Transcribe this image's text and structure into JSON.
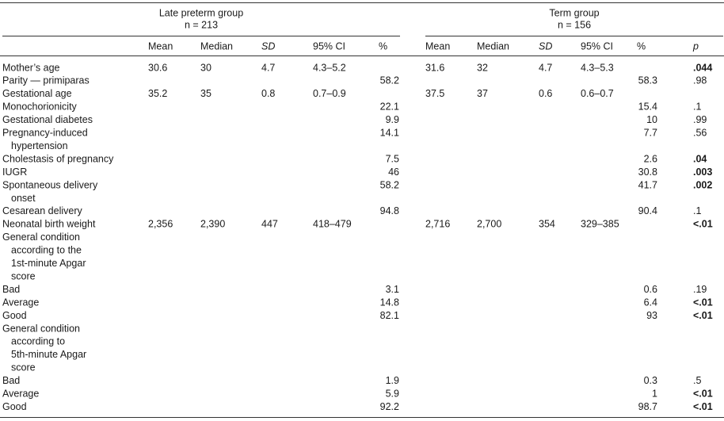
{
  "table": {
    "groups": [
      {
        "title": "Late preterm group",
        "n": "n = 213"
      },
      {
        "title": "Term group",
        "n": "n = 156"
      }
    ],
    "columns": [
      "Mean",
      "Median",
      "SD",
      "95% CI",
      "%"
    ],
    "p_header": "p",
    "rows": [
      {
        "label": [
          "Mother’s age"
        ],
        "late": [
          "30.6",
          "30",
          "4.7",
          "4.3–5.2",
          null
        ],
        "term": [
          "31.6",
          "32",
          "4.7",
          "4.3–5.3",
          null
        ],
        "p": ".044",
        "p_bold": true
      },
      {
        "label": [
          "Parity — primiparas"
        ],
        "late": [
          null,
          null,
          null,
          null,
          "58.2"
        ],
        "term": [
          null,
          null,
          null,
          null,
          "58.3"
        ],
        "p": ".98",
        "p_bold": false
      },
      {
        "label": [
          "Gestational age"
        ],
        "late": [
          "35.2",
          "35",
          "0.8",
          "0.7–0.9",
          null
        ],
        "term": [
          "37.5",
          "37",
          "0.6",
          "0.6–0.7",
          null
        ],
        "p": null,
        "p_bold": false
      },
      {
        "label": [
          "Monochorionicity"
        ],
        "late": [
          null,
          null,
          null,
          null,
          "22.1"
        ],
        "term": [
          null,
          null,
          null,
          null,
          "15.4"
        ],
        "p": ".1",
        "p_bold": false
      },
      {
        "label": [
          "Gestational diabetes"
        ],
        "late": [
          null,
          null,
          null,
          null,
          "9.9"
        ],
        "term": [
          null,
          null,
          null,
          null,
          "10"
        ],
        "p": ".99",
        "p_bold": false
      },
      {
        "label": [
          "Pregnancy-induced",
          "hypertension"
        ],
        "late": [
          null,
          null,
          null,
          null,
          "14.1"
        ],
        "term": [
          null,
          null,
          null,
          null,
          "7.7"
        ],
        "p": ".56",
        "p_bold": false
      },
      {
        "label": [
          "Cholestasis of pregnancy"
        ],
        "late": [
          null,
          null,
          null,
          null,
          "7.5"
        ],
        "term": [
          null,
          null,
          null,
          null,
          "2.6"
        ],
        "p": ".04",
        "p_bold": true
      },
      {
        "label": [
          "IUGR"
        ],
        "late": [
          null,
          null,
          null,
          null,
          "46"
        ],
        "term": [
          null,
          null,
          null,
          null,
          "30.8"
        ],
        "p": ".003",
        "p_bold": true
      },
      {
        "label": [
          "Spontaneous delivery",
          "onset"
        ],
        "late": [
          null,
          null,
          null,
          null,
          "58.2"
        ],
        "term": [
          null,
          null,
          null,
          null,
          "41.7"
        ],
        "p": ".002",
        "p_bold": true
      },
      {
        "label": [
          "Cesarean delivery"
        ],
        "late": [
          null,
          null,
          null,
          null,
          "94.8"
        ],
        "term": [
          null,
          null,
          null,
          null,
          "90.4"
        ],
        "p": ".1",
        "p_bold": false
      },
      {
        "label": [
          "Neonatal birth weight"
        ],
        "late": [
          "2,356",
          "2,390",
          "447",
          "418–479",
          null
        ],
        "term": [
          "2,716",
          "2,700",
          "354",
          "329–385",
          null
        ],
        "p": "<.01",
        "p_bold": true
      },
      {
        "label": [
          "General condition",
          "according to the",
          "1st-minute Apgar",
          "score"
        ],
        "late": [
          null,
          null,
          null,
          null,
          null
        ],
        "term": [
          null,
          null,
          null,
          null,
          null
        ],
        "p": null,
        "p_bold": false
      },
      {
        "label": [
          "Bad"
        ],
        "late": [
          null,
          null,
          null,
          null,
          "3.1"
        ],
        "term": [
          null,
          null,
          null,
          null,
          "0.6"
        ],
        "p": ".19",
        "p_bold": false
      },
      {
        "label": [
          "Average"
        ],
        "late": [
          null,
          null,
          null,
          null,
          "14.8"
        ],
        "term": [
          null,
          null,
          null,
          null,
          "6.4"
        ],
        "p": "<.01",
        "p_bold": true
      },
      {
        "label": [
          "Good"
        ],
        "late": [
          null,
          null,
          null,
          null,
          "82.1"
        ],
        "term": [
          null,
          null,
          null,
          null,
          "93"
        ],
        "p": "<.01",
        "p_bold": true
      },
      {
        "label": [
          "General condition",
          "according to",
          "5th-minute Apgar",
          "score"
        ],
        "late": [
          null,
          null,
          null,
          null,
          null
        ],
        "term": [
          null,
          null,
          null,
          null,
          null
        ],
        "p": null,
        "p_bold": false
      },
      {
        "label": [
          "Bad"
        ],
        "late": [
          null,
          null,
          null,
          null,
          "1.9"
        ],
        "term": [
          null,
          null,
          null,
          null,
          "0.3"
        ],
        "p": ".5",
        "p_bold": false
      },
      {
        "label": [
          "Average"
        ],
        "late": [
          null,
          null,
          null,
          null,
          "5.9"
        ],
        "term": [
          null,
          null,
          null,
          null,
          "1"
        ],
        "p": "<.01",
        "p_bold": true
      },
      {
        "label": [
          "Good"
        ],
        "late": [
          null,
          null,
          null,
          null,
          "92.2"
        ],
        "term": [
          null,
          null,
          null,
          null,
          "98.7"
        ],
        "p": "<.01",
        "p_bold": true
      }
    ]
  }
}
